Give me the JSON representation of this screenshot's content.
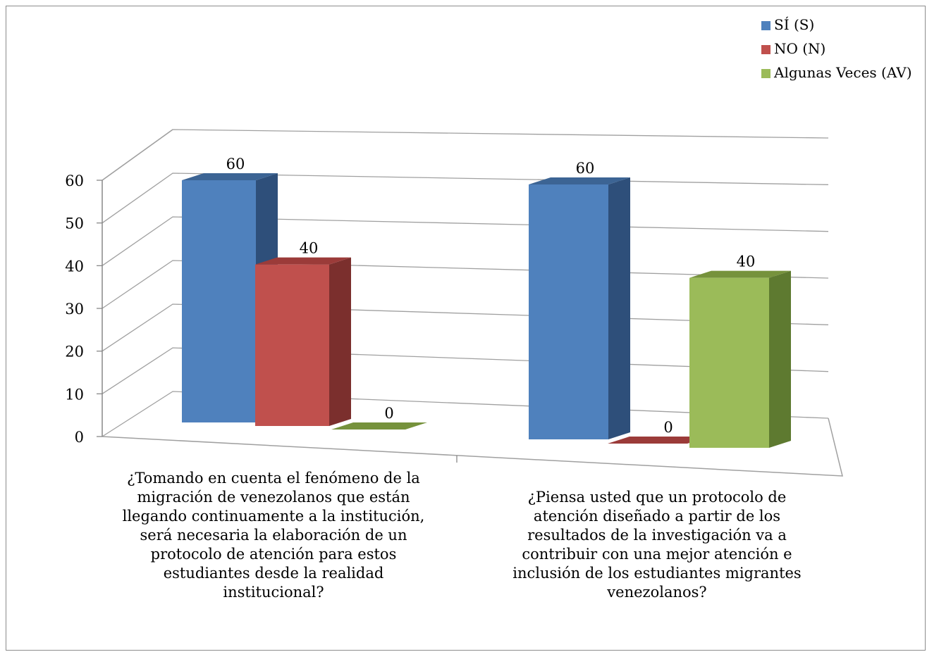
{
  "chart_data": {
    "type": "bar",
    "categories": [
      "¿Tomando en cuenta el fenómeno de la migración de venezolanos que están llegando continuamente a la institución, será necesaria la elaboración de un protocolo de atención para estos estudiantes desde la realidad institucional?",
      "¿Piensa usted que un protocolo de atención diseñado a partir de los resultados de la investigación va a contribuir con una mejor atención e inclusión de los estudiantes migrantes venezolanos?"
    ],
    "category_lines": [
      [
        "¿Tomando en cuenta el fenómeno de la",
        "migración de venezolanos que están",
        "llegando continuamente a la institución,",
        "será necesaria la elaboración de un",
        "protocolo de atención para estos",
        "estudiantes desde la realidad",
        "institucional?"
      ],
      [
        "¿Piensa usted que un protocolo de",
        "atención diseñado a partir de los",
        "resultados de la investigación va a",
        "contribuir con una mejor atención e",
        "inclusión de los estudiantes migrantes",
        "venezolanos?"
      ]
    ],
    "series": [
      {
        "name": "SÍ (S)",
        "values": [
          60,
          60
        ],
        "color": "#4F81BD",
        "side": "#2E4F7A",
        "top": "#3C6494"
      },
      {
        "name": "NO (N)",
        "values": [
          40,
          0
        ],
        "color": "#C0504D",
        "side": "#7B2F2D",
        "top": "#9B3B39"
      },
      {
        "name": "Algunas Veces (AV)",
        "values": [
          0,
          40
        ],
        "color": "#9BBB59",
        "side": "#5E7A30",
        "top": "#76923C"
      }
    ],
    "y_ticks": [
      "0",
      "10",
      "20",
      "30",
      "40",
      "50",
      "60"
    ],
    "ylim": [
      0,
      60
    ],
    "grid": true,
    "legend_position": "top-right",
    "title": "",
    "xlabel": "",
    "ylabel": ""
  }
}
